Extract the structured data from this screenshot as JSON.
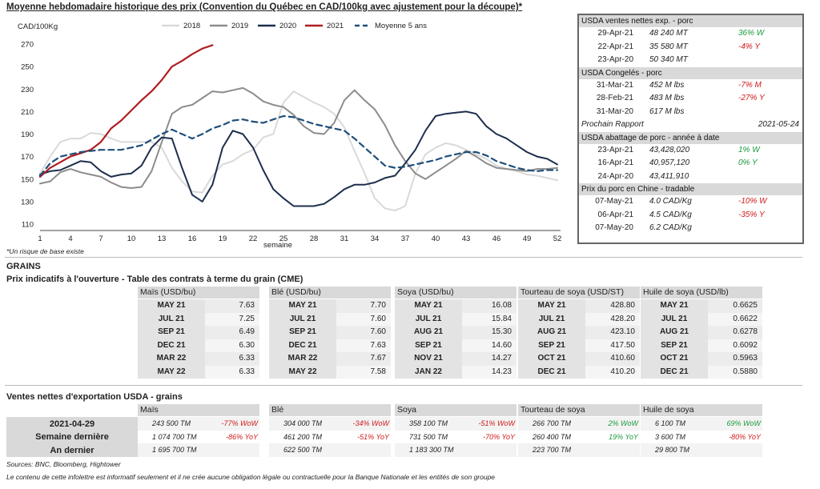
{
  "title": "Moyenne hebdomadaire historique des prix (Convention du Québec en CAD/100kg avec ajustement pour la découpe)*",
  "footnote": "*Un risque de base existe",
  "chart_data": {
    "type": "line",
    "ylabel": "CAD/100Kg",
    "xlabel": "semaine",
    "ylim": [
      110,
      275
    ],
    "yticks": [
      110,
      130,
      150,
      170,
      190,
      210,
      230,
      250,
      270
    ],
    "xlim": [
      1,
      52
    ],
    "xticks": [
      1,
      4,
      7,
      10,
      13,
      16,
      19,
      22,
      25,
      28,
      31,
      34,
      37,
      40,
      43,
      46,
      49,
      52
    ],
    "legend_position": "top",
    "series": [
      {
        "name": "2018",
        "color": "#d9d9d9",
        "dash": false,
        "width": 2,
        "x": [
          1,
          2,
          3,
          4,
          5,
          6,
          7,
          8,
          9,
          10,
          11,
          12,
          13,
          14,
          15,
          16,
          17,
          18,
          19,
          20,
          21,
          22,
          23,
          24,
          25,
          26,
          27,
          28,
          29,
          30,
          31,
          32,
          33,
          34,
          35,
          36,
          37,
          38,
          39,
          40,
          41,
          42,
          43,
          44,
          45,
          46,
          47,
          48,
          49,
          50,
          51,
          52
        ],
        "y": [
          155,
          170,
          183,
          186,
          186,
          191,
          190,
          186,
          183,
          183,
          183,
          183,
          178,
          160,
          148,
          139,
          138,
          153,
          163,
          166,
          172,
          176,
          187,
          190,
          218,
          228,
          223,
          218,
          214,
          208,
          196,
          175,
          155,
          133,
          124,
          122,
          126,
          155,
          172,
          178,
          182,
          180,
          176,
          172,
          168,
          162,
          159,
          157,
          154,
          153,
          151,
          149
        ]
      },
      {
        "name": "2019",
        "color": "#8c8c8c",
        "dash": false,
        "width": 2,
        "x": [
          1,
          2,
          3,
          4,
          5,
          6,
          7,
          8,
          9,
          10,
          11,
          12,
          13,
          14,
          15,
          16,
          17,
          18,
          19,
          20,
          21,
          22,
          23,
          24,
          25,
          26,
          27,
          28,
          29,
          30,
          31,
          32,
          33,
          34,
          35,
          36,
          37,
          38,
          39,
          40,
          41,
          42,
          43,
          44,
          45,
          46,
          47,
          48,
          49,
          50,
          51,
          52
        ],
        "y": [
          146,
          148,
          156,
          159,
          156,
          154,
          152,
          147,
          143,
          142,
          143,
          157,
          183,
          208,
          214,
          216,
          222,
          228,
          227,
          229,
          231,
          226,
          219,
          216,
          214,
          207,
          197,
          191,
          190,
          200,
          220,
          229,
          220,
          212,
          198,
          180,
          166,
          155,
          150,
          156,
          162,
          168,
          175,
          170,
          164,
          160,
          159,
          158,
          157,
          159,
          159,
          160
        ]
      },
      {
        "name": "2020",
        "color": "#1c2f4d",
        "dash": false,
        "width": 2,
        "x": [
          1,
          2,
          3,
          4,
          5,
          6,
          7,
          8,
          9,
          10,
          11,
          12,
          13,
          14,
          15,
          16,
          17,
          18,
          19,
          20,
          21,
          22,
          23,
          24,
          25,
          26,
          27,
          28,
          29,
          30,
          31,
          32,
          33,
          34,
          35,
          36,
          37,
          38,
          39,
          40,
          41,
          42,
          43,
          44,
          45,
          46,
          47,
          48,
          49,
          50,
          51,
          52
        ],
        "y": [
          154,
          157,
          158,
          162,
          166,
          165,
          157,
          152,
          154,
          155,
          162,
          178,
          187,
          186,
          160,
          136,
          130,
          145,
          178,
          193,
          190,
          178,
          158,
          141,
          133,
          126,
          126,
          126,
          128,
          134,
          141,
          145,
          145,
          147,
          151,
          153,
          164,
          176,
          193,
          206,
          208,
          209,
          210,
          208,
          197,
          190,
          186,
          180,
          174,
          170,
          168,
          163
        ]
      },
      {
        "name": "2021",
        "color": "#b01c20",
        "dash": false,
        "width": 2.2,
        "x": [
          1,
          2,
          3,
          4,
          5,
          6,
          7,
          8,
          9,
          10,
          11,
          12,
          13,
          14,
          15,
          16,
          17,
          18
        ],
        "y": [
          152,
          160,
          165,
          170,
          173,
          176,
          183,
          195,
          202,
          211,
          220,
          228,
          238,
          250,
          255,
          261,
          266,
          269
        ]
      },
      {
        "name": "Moyenne 5 ans",
        "color": "#1f4e79",
        "dash": true,
        "width": 2.2,
        "x": [
          1,
          2,
          3,
          4,
          5,
          6,
          7,
          8,
          9,
          10,
          11,
          12,
          13,
          14,
          15,
          16,
          17,
          18,
          19,
          20,
          21,
          22,
          23,
          24,
          25,
          26,
          27,
          28,
          29,
          30,
          31,
          32,
          33,
          34,
          35,
          36,
          37,
          38,
          39,
          40,
          41,
          42,
          43,
          44,
          45,
          46,
          47,
          48,
          49,
          50,
          51,
          52
        ],
        "y": [
          153,
          164,
          170,
          172,
          174,
          175,
          176,
          176,
          176,
          178,
          180,
          185,
          190,
          194,
          190,
          186,
          190,
          195,
          198,
          202,
          203,
          201,
          200,
          203,
          206,
          205,
          202,
          199,
          197,
          195,
          193,
          186,
          178,
          170,
          162,
          160,
          161,
          163,
          165,
          167,
          170,
          172,
          174,
          174,
          171,
          166,
          163,
          160,
          158,
          157,
          158,
          158
        ]
      }
    ]
  },
  "side": {
    "sections": [
      {
        "header": "USDA ventes nettes exp. - porc",
        "rows": [
          {
            "date": "29-Apr-21",
            "value": "48 240  MT",
            "change": "36% W",
            "sign": "pos"
          },
          {
            "date": "22-Apr-21",
            "value": "35 580  MT",
            "change": "-4% Y",
            "sign": "neg"
          },
          {
            "date": "23-Apr-20",
            "value": "50 340  MT",
            "change": "",
            "sign": ""
          }
        ]
      },
      {
        "header": "USDA Congelés - porc",
        "rows": [
          {
            "date": "31-Mar-21",
            "value": "452 M lbs",
            "change": "-7% M",
            "sign": "neg"
          },
          {
            "date": "28-Feb-21",
            "value": "483 M lbs",
            "change": "-27% Y",
            "sign": "neg"
          },
          {
            "date": "31-Mar-20",
            "value": "617 M lbs",
            "change": "",
            "sign": ""
          }
        ]
      },
      {
        "header": "",
        "plain": true,
        "rows": [
          {
            "date": "Prochain Rapport",
            "value": "",
            "change": "2021-05-24",
            "sign": ""
          }
        ]
      },
      {
        "header": "USDA abattage de porc - année à date",
        "rows": [
          {
            "date": "23-Apr-21",
            "value": "43,428,020",
            "change": "1% W",
            "sign": "pos"
          },
          {
            "date": "16-Apr-21",
            "value": "40,957,120",
            "change": "0% Y",
            "sign": "pos"
          },
          {
            "date": "24-Apr-20",
            "value": "43,411,910",
            "change": "",
            "sign": ""
          }
        ]
      },
      {
        "header": "Prix du porc en Chine - tradable",
        "rows": [
          {
            "date": "07-May-21",
            "value": "4.0 CAD/Kg",
            "change": "-10% W",
            "sign": "neg"
          },
          {
            "date": "06-Apr-21",
            "value": "4.5 CAD/Kg",
            "change": "-35% Y",
            "sign": "neg"
          },
          {
            "date": "07-May-20",
            "value": "6.2 CAD/Kg",
            "change": "",
            "sign": ""
          }
        ]
      }
    ]
  },
  "grains_label": "GRAINS",
  "futures": {
    "title": "Prix indicatifs à l'ouverture - Table des contrats à terme du grain (CME)",
    "columns": [
      {
        "header": "Maïs (USD/bu)",
        "rows": [
          [
            "MAY 21",
            "7.63"
          ],
          [
            "JUL 21",
            "7.25"
          ],
          [
            "SEP 21",
            "6.49"
          ],
          [
            "DEC 21",
            "6.30"
          ],
          [
            "MAR 22",
            "6.33"
          ],
          [
            "MAY 22",
            "6.33"
          ]
        ]
      },
      {
        "header": "Blé (USD/bu)",
        "rows": [
          [
            "MAY 21",
            "7.70"
          ],
          [
            "JUL 21",
            "7.60"
          ],
          [
            "SEP 21",
            "7.60"
          ],
          [
            "DEC 21",
            "7.63"
          ],
          [
            "MAR 22",
            "7.67"
          ],
          [
            "MAY 22",
            "7.58"
          ]
        ]
      },
      {
        "header": "Soya (USD/bu)",
        "rows": [
          [
            "MAY 21",
            "16.08"
          ],
          [
            "JUL 21",
            "15.84"
          ],
          [
            "AUG 21",
            "15.30"
          ],
          [
            "SEP 21",
            "14.60"
          ],
          [
            "NOV 21",
            "14.27"
          ],
          [
            "JAN 22",
            "14.23"
          ]
        ]
      },
      {
        "header": "Tourteau de soya (USD/ST)",
        "rows": [
          [
            "MAY 21",
            "428.80"
          ],
          [
            "JUL 21",
            "428.20"
          ],
          [
            "AUG 21",
            "423.10"
          ],
          [
            "SEP 21",
            "417.50"
          ],
          [
            "OCT 21",
            "410.60"
          ],
          [
            "DEC 21",
            "410.20"
          ]
        ]
      },
      {
        "header": "Huile de soya (USD/lb)",
        "rows": [
          [
            "MAY 21",
            "0.6625"
          ],
          [
            "JUL 21",
            "0.6622"
          ],
          [
            "AUG 21",
            "0.6278"
          ],
          [
            "SEP 21",
            "0.6092"
          ],
          [
            "OCT 21",
            "0.5963"
          ],
          [
            "DEC 21",
            "0.5880"
          ]
        ]
      }
    ]
  },
  "exports": {
    "title": "Ventes nettes d'exportation USDA - grains",
    "row_labels": [
      "2021-04-29",
      "Semaine dernière",
      "An dernier"
    ],
    "columns": [
      {
        "header": "Maïs",
        "rows": [
          [
            "243 500 TM",
            "-77% WoW",
            "neg"
          ],
          [
            "1 074 700 TM",
            "-86% YoY",
            "neg"
          ],
          [
            "1 695 700 TM",
            "",
            ""
          ]
        ]
      },
      {
        "header": "Blé",
        "rows": [
          [
            "304 000 TM",
            "-34% WoW",
            "neg"
          ],
          [
            "461 200 TM",
            "-51% YoY",
            "neg"
          ],
          [
            "622 500 TM",
            "",
            ""
          ]
        ]
      },
      {
        "header": "Soya",
        "rows": [
          [
            "358 100 TM",
            "-51% WoW",
            "neg"
          ],
          [
            "731 500 TM",
            "-70% YoY",
            "neg"
          ],
          [
            "1 183 300 TM",
            "",
            ""
          ]
        ]
      },
      {
        "header": "Tourteau de soya",
        "rows": [
          [
            "266 700 TM",
            "2% WoW",
            "pos"
          ],
          [
            "260 400 TM",
            "19% YoY",
            "pos"
          ],
          [
            "223 700 TM",
            "",
            ""
          ]
        ]
      },
      {
        "header": "Huile de soya",
        "rows": [
          [
            "6 100 TM",
            "69% WoW",
            "pos"
          ],
          [
            "3 600 TM",
            "-80% YoY",
            "neg"
          ],
          [
            "29 800 TM",
            "",
            ""
          ]
        ]
      }
    ]
  },
  "sources": "Sources: BNC, Bloomberg, Hightower",
  "disclaimer": "Le contenu de cette infolettre est informatif seulement et il ne crée aucune obligation légale ou contractuelle pour la Banque Nationale et les entités de son groupe"
}
